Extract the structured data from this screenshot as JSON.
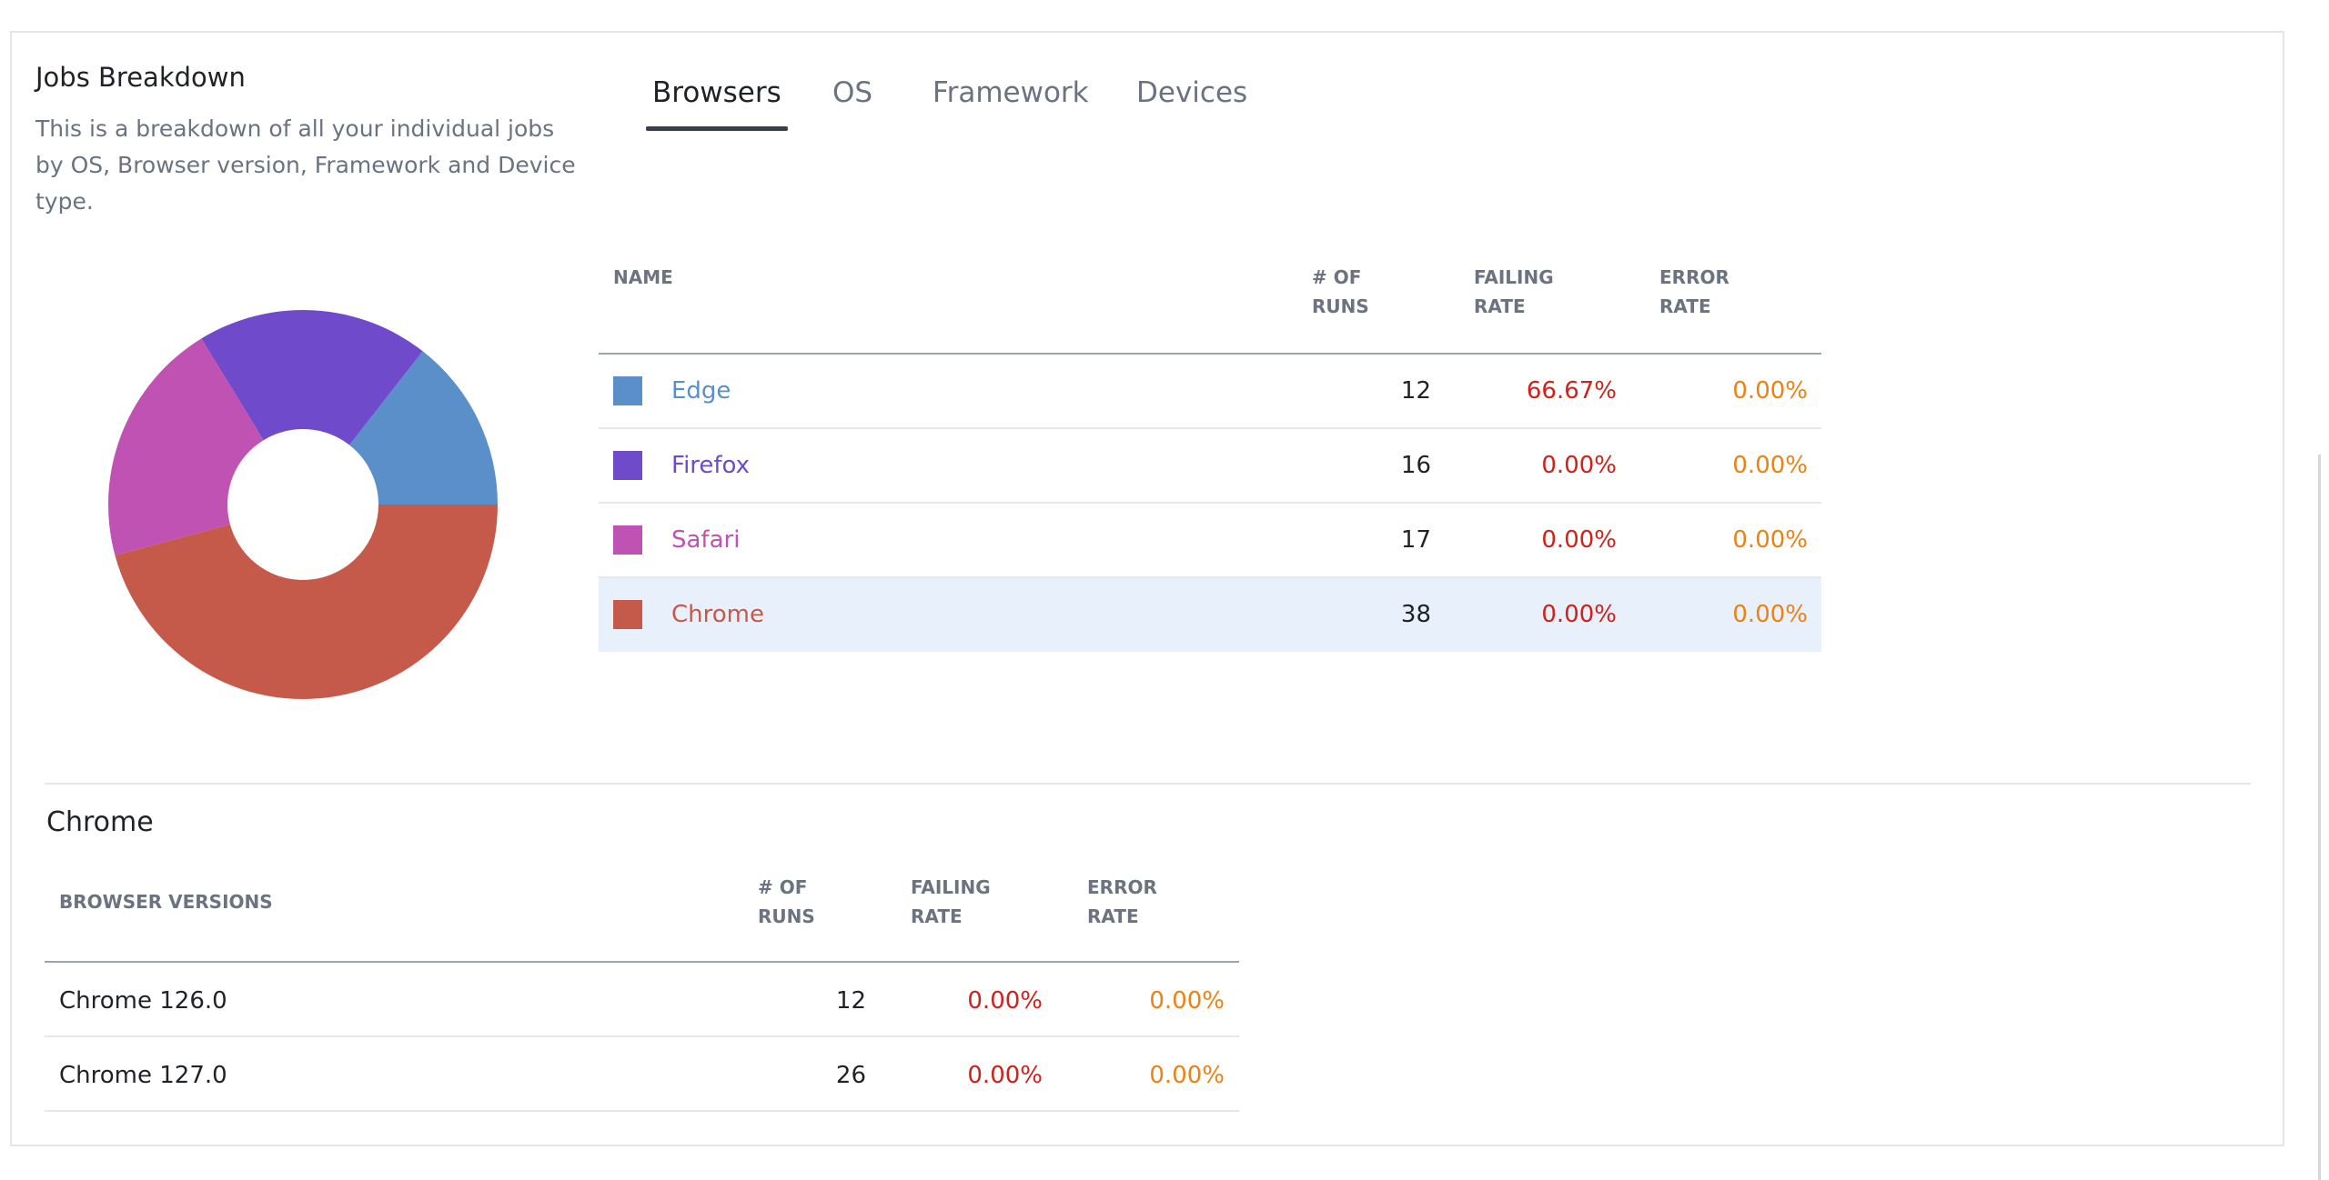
{
  "panel": {
    "title": "Jobs Breakdown",
    "description": "This is a breakdown of all your individual jobs by OS, Browser version, Framework and Device type."
  },
  "tabs": [
    {
      "label": "Browsers",
      "active": true
    },
    {
      "label": "OS",
      "active": false
    },
    {
      "label": "Framework",
      "active": false
    },
    {
      "label": "Devices",
      "active": false
    }
  ],
  "table": {
    "columns": [
      "NAME",
      "# OF RUNS",
      "FAILING RATE",
      "ERROR RATE"
    ],
    "rows": [
      {
        "name": "Edge",
        "color": "#5b8fca",
        "runs": 12,
        "failing_rate": "66.67%",
        "error_rate": "0.00%",
        "highlighted": false
      },
      {
        "name": "Firefox",
        "color": "#6f4bcb",
        "runs": 16,
        "failing_rate": "0.00%",
        "error_rate": "0.00%",
        "highlighted": false
      },
      {
        "name": "Safari",
        "color": "#c052b3",
        "runs": 17,
        "failing_rate": "0.00%",
        "error_rate": "0.00%",
        "highlighted": false
      },
      {
        "name": "Chrome",
        "color": "#c55a4b",
        "runs": 38,
        "failing_rate": "0.00%",
        "error_rate": "0.00%",
        "highlighted": true
      }
    ]
  },
  "detail": {
    "title": "Chrome",
    "columns": [
      "BROWSER VERSIONS",
      "# OF RUNS",
      "FAILING RATE",
      "ERROR RATE"
    ],
    "rows": [
      {
        "name": "Chrome 126.0",
        "runs": 12,
        "failing_rate": "0.00%",
        "error_rate": "0.00%"
      },
      {
        "name": "Chrome 127.0",
        "runs": 26,
        "failing_rate": "0.00%",
        "error_rate": "0.00%"
      }
    ]
  }
}
